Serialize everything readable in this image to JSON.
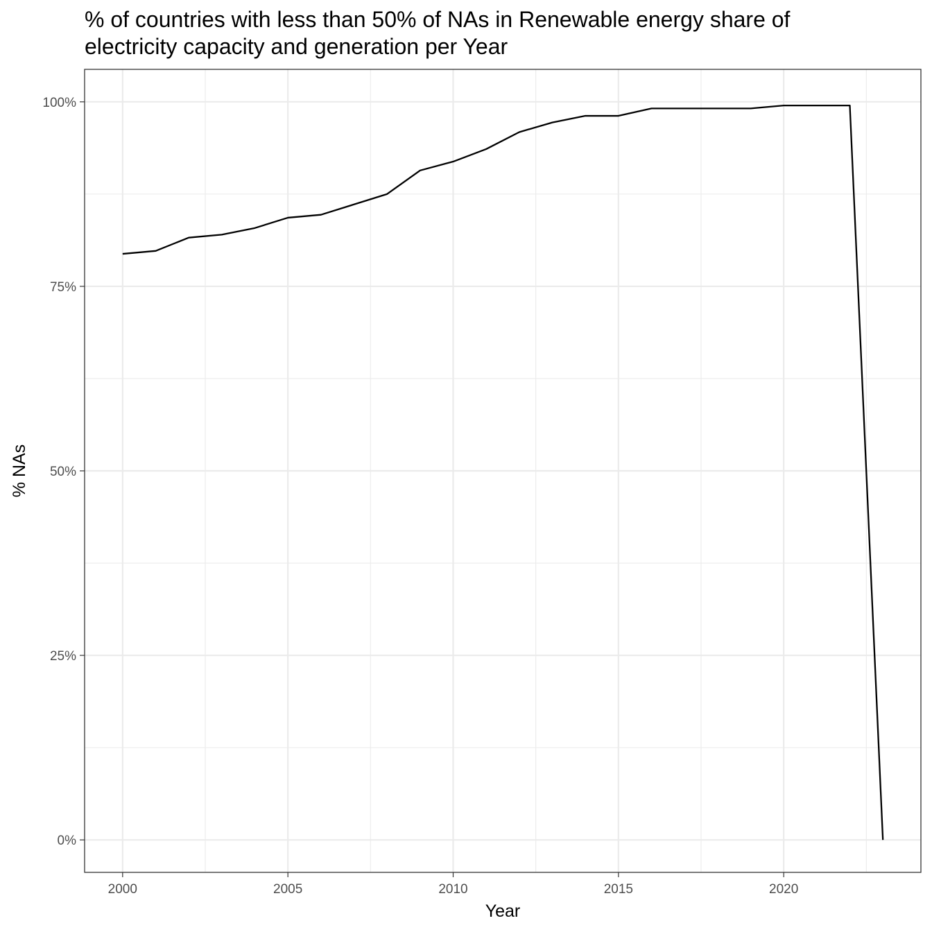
{
  "chart_data": {
    "type": "line",
    "title": "% of countries with less than 50% of NAs in Renewable energy share of electricity capacity and generation per Year",
    "title_lines": [
      "% of countries with less than 50% of NAs in Renewable energy share of",
      "electricity capacity and generation per Year"
    ],
    "xlabel": "Year",
    "ylabel": "% NAs",
    "x_ticks": [
      2000,
      2005,
      2010,
      2015,
      2020
    ],
    "y_ticks": [
      0,
      25,
      50,
      75,
      100
    ],
    "y_tick_labels": [
      "0%",
      "25%",
      "50%",
      "75%",
      "100%"
    ],
    "xlim": [
      1998.85,
      2024.15
    ],
    "ylim": [
      -4.4,
      104.4
    ],
    "grid": "on",
    "colors": {
      "line": "#000000",
      "grid": "#ebebeb",
      "border": "#333333"
    },
    "series": [
      {
        "x": [
          2000,
          2001,
          2002,
          2003,
          2004,
          2005,
          2006,
          2007,
          2008,
          2009,
          2010,
          2011,
          2012,
          2013,
          2014,
          2015,
          2016,
          2017,
          2018,
          2019,
          2020,
          2021,
          2022,
          2023
        ],
        "values": [
          79.4,
          79.8,
          81.6,
          82.0,
          82.9,
          84.3,
          84.7,
          86.1,
          87.5,
          90.7,
          91.9,
          93.6,
          95.9,
          97.2,
          98.1,
          98.1,
          99.1,
          99.1,
          99.1,
          99.1,
          99.5,
          99.5,
          99.5,
          0.0
        ]
      }
    ]
  }
}
